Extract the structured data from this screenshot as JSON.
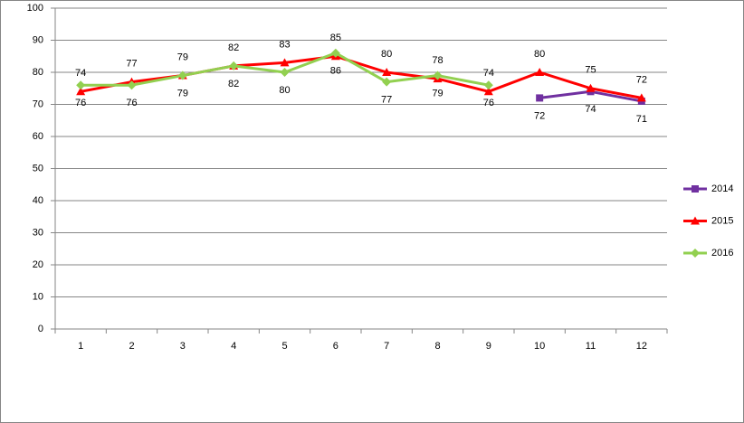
{
  "chart_data": {
    "type": "line",
    "categories": [
      "1",
      "2",
      "3",
      "4",
      "5",
      "6",
      "7",
      "8",
      "9",
      "10",
      "11",
      "12"
    ],
    "series": [
      {
        "name": "2014",
        "color": "#7030a0",
        "marker": "square",
        "label_position": "below",
        "values": [
          null,
          null,
          null,
          null,
          null,
          null,
          null,
          null,
          null,
          72,
          74,
          71
        ]
      },
      {
        "name": "2015",
        "color": "#ff0000",
        "marker": "triangle",
        "label_position": "above",
        "values": [
          74,
          77,
          79,
          82,
          83,
          85,
          80,
          78,
          74,
          80,
          75,
          72
        ]
      },
      {
        "name": "2016",
        "color": "#92d050",
        "marker": "diamond",
        "label_position": "below",
        "values": [
          76,
          76,
          79,
          82,
          80,
          86,
          77,
          79,
          76,
          null,
          null,
          null
        ]
      }
    ],
    "ylim": [
      0,
      100
    ],
    "yticks": [
      0,
      10,
      20,
      30,
      40,
      50,
      60,
      70,
      80,
      90,
      100
    ],
    "grid": true,
    "data_labels": true,
    "legend": "right"
  }
}
